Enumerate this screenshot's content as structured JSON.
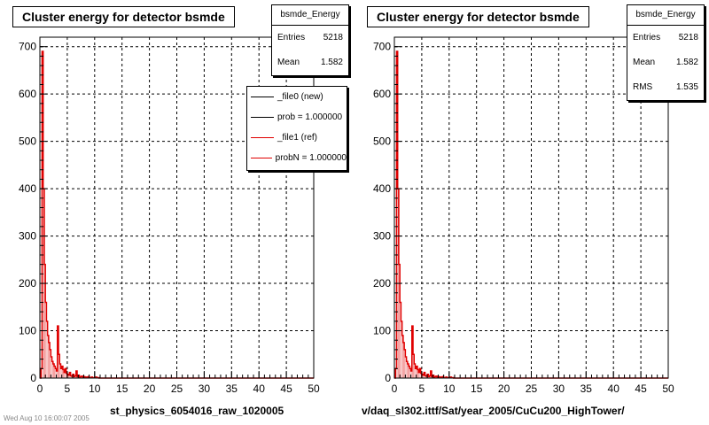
{
  "footer": "Wed Aug 10 16:00:07 2005",
  "chart_data": [
    {
      "type": "histogram",
      "title": "Cluster energy for detector bsmde",
      "xlabel": "st_physics_6054016_raw_1020005",
      "ylabel": "",
      "xlim": [
        0,
        50
      ],
      "ylim": [
        0,
        720
      ],
      "xticks": [
        "0",
        "5",
        "10",
        "15",
        "20",
        "25",
        "30",
        "35",
        "40",
        "45",
        "50"
      ],
      "yticks": [
        "0",
        "100",
        "200",
        "300",
        "400",
        "500",
        "600",
        "700"
      ],
      "grid": true,
      "stats": {
        "name": "bsmde_Energy",
        "rows": [
          {
            "label": "Entries",
            "value": "5218"
          },
          {
            "label": "Mean",
            "value": "1.582"
          }
        ]
      },
      "legend": {
        "placement": "top-right",
        "entries": [
          {
            "text": "_file0 (new)",
            "color": "#000000"
          },
          {
            "text": "prob = 1.000000",
            "color": "#000000"
          },
          {
            "text": "_file1 (ref)",
            "color": "#e00000"
          },
          {
            "text": "probN = 1.000000",
            "color": "#e00000"
          }
        ]
      },
      "series": [
        {
          "color": "#e00000",
          "bin_width": 0.2,
          "values": [
            0,
            20,
            690,
            400,
            240,
            160,
            120,
            90,
            75,
            60,
            45,
            35,
            30,
            25,
            20,
            15,
            110,
            50,
            30,
            20,
            25,
            18,
            12,
            20,
            10,
            8,
            6,
            12,
            5,
            4,
            8,
            3,
            5,
            15,
            3,
            6,
            2,
            3,
            4,
            2,
            3,
            2,
            2,
            1,
            3,
            1,
            1,
            2,
            1,
            1,
            1,
            2,
            1,
            1
          ]
        }
      ]
    },
    {
      "type": "histogram",
      "title": "Cluster energy for detector bsmde",
      "xlabel": "v/daq_sl302.ittf/Sat/year_2005/CuCu200_HighTower/",
      "ylabel": "",
      "xlim": [
        0,
        50
      ],
      "ylim": [
        0,
        720
      ],
      "xticks": [
        "0",
        "5",
        "10",
        "15",
        "20",
        "25",
        "30",
        "35",
        "40",
        "45",
        "50"
      ],
      "yticks": [
        "0",
        "100",
        "200",
        "300",
        "400",
        "500",
        "600",
        "700"
      ],
      "grid": true,
      "stats": {
        "name": "bsmde_Energy",
        "rows": [
          {
            "label": "Entries",
            "value": "5218"
          },
          {
            "label": "Mean",
            "value": "1.582"
          },
          {
            "label": "RMS",
            "value": "1.535"
          }
        ]
      },
      "series": [
        {
          "color": "#e00000",
          "bin_width": 0.2,
          "values": [
            0,
            20,
            690,
            400,
            240,
            160,
            120,
            90,
            75,
            60,
            45,
            35,
            30,
            25,
            20,
            15,
            110,
            50,
            30,
            20,
            25,
            18,
            12,
            20,
            10,
            8,
            6,
            12,
            5,
            4,
            8,
            3,
            5,
            15,
            3,
            6,
            2,
            3,
            4,
            2,
            3,
            2,
            2,
            1,
            3,
            1,
            1,
            2,
            1,
            1,
            1,
            2,
            1,
            1
          ]
        }
      ]
    }
  ]
}
